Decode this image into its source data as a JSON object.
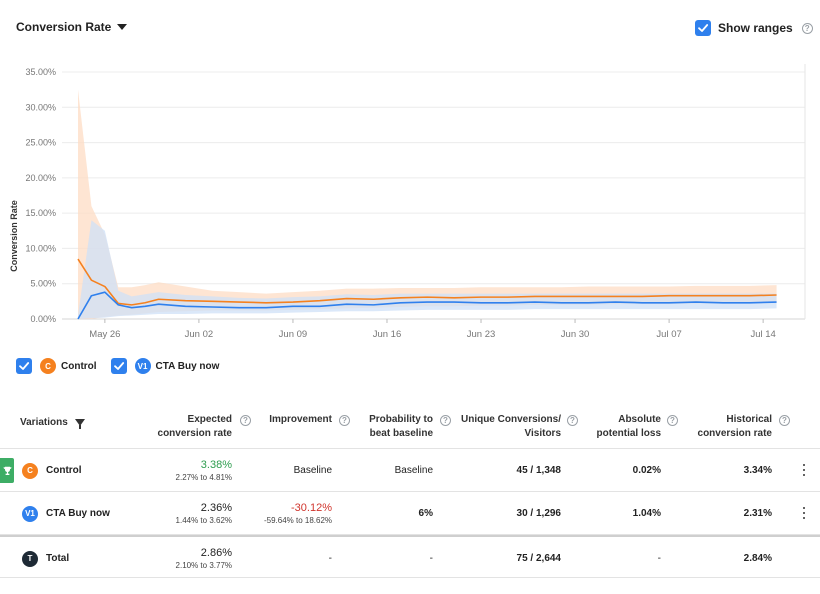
{
  "header": {
    "metric_label": "Conversion Rate",
    "show_ranges_label": "Show ranges",
    "show_ranges_checked": true
  },
  "chart_data": {
    "type": "line",
    "ylabel": "Conversion Rate",
    "xlabel": "",
    "ylim": [
      0,
      35
    ],
    "y_ticks": [
      "0.00%",
      "5.00%",
      "10.00%",
      "15.00%",
      "20.00%",
      "25.00%",
      "30.00%",
      "35.00%"
    ],
    "x_tick_labels": [
      "May 26",
      "Jun 02",
      "Jun 09",
      "Jun 16",
      "Jun 23",
      "Jun 30",
      "Jul 07",
      "Jul 14"
    ],
    "x_tick_days": [
      2,
      9,
      16,
      23,
      30,
      37,
      44,
      51
    ],
    "x_range_days": [
      0,
      53
    ],
    "series": [
      {
        "name": "Control",
        "color": "#f5811f",
        "band_color": "#fddcc4",
        "x": [
          0,
          1,
          2,
          3,
          4,
          5,
          6,
          8,
          10,
          12,
          14,
          16,
          18,
          20,
          22,
          24,
          26,
          28,
          30,
          32,
          34,
          36,
          38,
          40,
          42,
          44,
          46,
          48,
          50,
          52
        ],
        "values": [
          8.5,
          5.5,
          4.6,
          2.2,
          2.0,
          2.3,
          2.8,
          2.6,
          2.5,
          2.4,
          2.3,
          2.4,
          2.6,
          2.9,
          2.8,
          3.0,
          3.1,
          3.0,
          3.1,
          3.1,
          3.2,
          3.2,
          3.2,
          3.2,
          3.2,
          3.3,
          3.3,
          3.3,
          3.3,
          3.4
        ],
        "upper": [
          32.5,
          16,
          12,
          4.5,
          4.5,
          4.8,
          5.2,
          4.6,
          4.0,
          3.8,
          3.6,
          3.8,
          4.0,
          4.3,
          4.3,
          4.4,
          4.4,
          4.4,
          4.5,
          4.5,
          4.5,
          4.5,
          4.6,
          4.6,
          4.6,
          4.6,
          4.7,
          4.7,
          4.7,
          4.8
        ],
        "lower": [
          0,
          0,
          0.3,
          0.5,
          0.6,
          0.8,
          1.0,
          1.1,
          1.2,
          1.2,
          1.2,
          1.3,
          1.4,
          1.5,
          1.6,
          1.7,
          1.8,
          1.8,
          1.9,
          1.9,
          2.0,
          2.0,
          2.0,
          2.1,
          2.1,
          2.1,
          2.2,
          2.2,
          2.2,
          2.3
        ]
      },
      {
        "name": "CTA Buy now",
        "color": "#2f80ed",
        "band_color": "#cfe0f7",
        "x": [
          0,
          1,
          2,
          3,
          4,
          5,
          6,
          8,
          10,
          12,
          14,
          16,
          18,
          20,
          22,
          24,
          26,
          28,
          30,
          32,
          34,
          36,
          38,
          40,
          42,
          44,
          46,
          48,
          50,
          52
        ],
        "values": [
          0.0,
          3.3,
          3.8,
          2.0,
          1.6,
          1.8,
          2.1,
          1.8,
          1.7,
          1.6,
          1.6,
          1.8,
          1.8,
          2.1,
          2.0,
          2.3,
          2.4,
          2.4,
          2.3,
          2.3,
          2.4,
          2.3,
          2.3,
          2.4,
          2.3,
          2.3,
          2.4,
          2.3,
          2.3,
          2.4
        ],
        "upper": [
          0.5,
          14,
          12.5,
          4.0,
          3.2,
          3.5,
          3.8,
          3.4,
          3.2,
          3.0,
          2.9,
          3.1,
          3.2,
          3.5,
          3.4,
          3.6,
          3.6,
          3.6,
          3.6,
          3.6,
          3.6,
          3.6,
          3.6,
          3.6,
          3.6,
          3.6,
          3.6,
          3.6,
          3.6,
          3.6
        ],
        "lower": [
          0,
          0.1,
          0.2,
          0.4,
          0.5,
          0.6,
          0.7,
          0.7,
          0.8,
          0.8,
          0.8,
          0.9,
          1.0,
          1.1,
          1.1,
          1.2,
          1.3,
          1.3,
          1.3,
          1.3,
          1.4,
          1.4,
          1.4,
          1.4,
          1.4,
          1.4,
          1.4,
          1.4,
          1.4,
          1.5
        ]
      }
    ]
  },
  "legend": [
    {
      "badge": "C",
      "name": "Control",
      "checked": true
    },
    {
      "badge": "V1",
      "name": "CTA Buy now",
      "checked": true
    }
  ],
  "table": {
    "headers": {
      "variations": "Variations",
      "expected_1": "Expected",
      "expected_2": "conversion rate",
      "improvement": "Improvement",
      "prob_1": "Probability to",
      "prob_2": "beat baseline",
      "unique_1": "Unique Conversions/",
      "unique_2": "Visitors",
      "abs_1": "Absolute",
      "abs_2": "potential loss",
      "hist_1": "Historical",
      "hist_2": "conversion rate"
    },
    "rows": [
      {
        "badge": "C",
        "name": "Control",
        "expected": "3.38%",
        "expected_range": "2.27% to 4.81%",
        "improvement": "Baseline",
        "improvement_range": "",
        "probability": "Baseline",
        "unique": "45 / 1,348",
        "abs_loss": "0.02%",
        "historical": "3.34%"
      },
      {
        "badge": "V1",
        "name": "CTA Buy now",
        "expected": "2.36%",
        "expected_range": "1.44% to 3.62%",
        "improvement": "-30.12%",
        "improvement_range": "-59.64% to 18.62%",
        "probability": "6%",
        "unique": "30 / 1,296",
        "abs_loss": "1.04%",
        "historical": "2.31%"
      }
    ],
    "total": {
      "badge": "T",
      "name": "Total",
      "expected": "2.86%",
      "expected_range": "2.10% to 3.77%",
      "improvement": "-",
      "probability": "-",
      "unique": "75 / 2,644",
      "abs_loss": "-",
      "historical": "2.84%"
    }
  }
}
